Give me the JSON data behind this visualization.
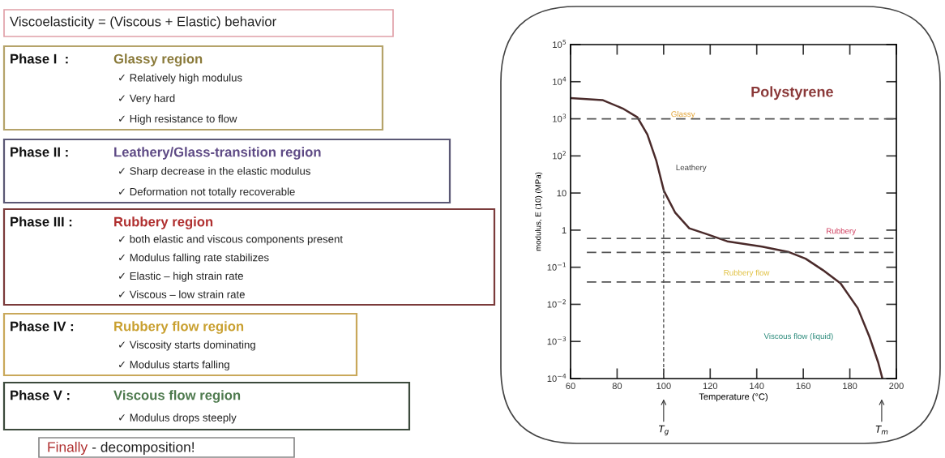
{
  "chart_data": [
    {
      "type": "other",
      "title": "Viscoelasticity = (Viscous + Elastic) behavior",
      "annotations": [
        "Phase I  :",
        "Glassy region",
        "✓ Relatively high modulus",
        "✓ Very hard",
        "✓ High resistance to flow",
        "Phase II :",
        "Leathery/Glass-transition region",
        "✓ Sharp decrease in the elastic modulus",
        "✓ Deformation not totally recoverable",
        "Phase III :",
        "Rubbery region",
        "✓ both elastic and viscous components present",
        "✓ Modulus falling rate stabilizes",
        "✓ Elastic – high strain rate",
        "✓ Viscous – low strain rate",
        "Phase IV :",
        "Rubbery flow region",
        "✓ Viscosity starts dominating",
        "✓ Modulus starts falling",
        "Phase V :",
        "Viscous flow region",
        "✓ Modulus drops steeply",
        "Finally",
        " - decomposition!"
      ]
    },
    {
      "type": "line",
      "title": "Polystyrene",
      "xlabel": "Temperature (°C)",
      "ylabel": "modulus, E (10) (MPa)",
      "x": [
        60,
        73.7,
        82.4,
        88.7,
        93,
        96.8,
        100.1,
        104.9,
        111,
        118.6,
        127.3,
        142.3,
        153.5,
        161,
        168.5,
        176,
        183.4,
        188.4,
        192.2,
        194
      ],
      "series": [
        {
          "color": "#4a2a2a",
          "values": [
            3600,
            3200,
            1900,
            1100,
            380,
            76,
            11.5,
            3.0,
            1.12,
            0.78,
            0.5,
            0.36,
            0.26,
            0.17,
            0.083,
            0.037,
            0.0079,
            0.00135,
            0.00027,
            0.0001
          ]
        }
      ],
      "log": "y",
      "xlim": [
        60,
        200
      ],
      "xticks": [
        60,
        80,
        100,
        120,
        140,
        160,
        180,
        200
      ],
      "ylim": [
        0.0001,
        100000
      ],
      "yticks": [
        {
          "value": 0.0001,
          "label": "10$^{−4}$"
        },
        {
          "value": 0.001,
          "label": "10$^{−3}$"
        },
        {
          "value": 0.01,
          "label": "10$^{−2}$"
        },
        {
          "value": 0.1,
          "label": "10$^{−1}$"
        },
        1,
        10,
        {
          "value": 100,
          "label": "10$^{2}$"
        },
        {
          "value": 1000,
          "label": "10$^{3}$"
        },
        {
          "value": 10000,
          "label": "10$^{4}$"
        },
        {
          "value": 100000,
          "label": "10$^{5}$"
        }
      ],
      "ref_lines": [
        {
          "axis": "y",
          "value": 1000,
          "line_style": "dashed",
          "color": "#555555"
        },
        {
          "axis": "y",
          "value": 0.6,
          "line_style": "dashed",
          "color": "#555555"
        },
        {
          "axis": "y",
          "value": 0.25,
          "line_style": "dashed",
          "color": "#555555"
        },
        {
          "axis": "y",
          "value": 0.04,
          "line_style": "dashed",
          "color": "#555555"
        },
        {
          "axis": "x",
          "value": 100,
          "line_style": "dashed",
          "color": "#555555"
        }
      ],
      "annotations": [
        "Glassy",
        "Leathery",
        "Rubbery",
        "Rubbery flow",
        "Viscous flow (liquid)",
        "T$_{g}$",
        "T$_{m}$"
      ],
      "grid": false,
      "legend": false,
      "marker": "none",
      "line_style": "solid"
    }
  ]
}
